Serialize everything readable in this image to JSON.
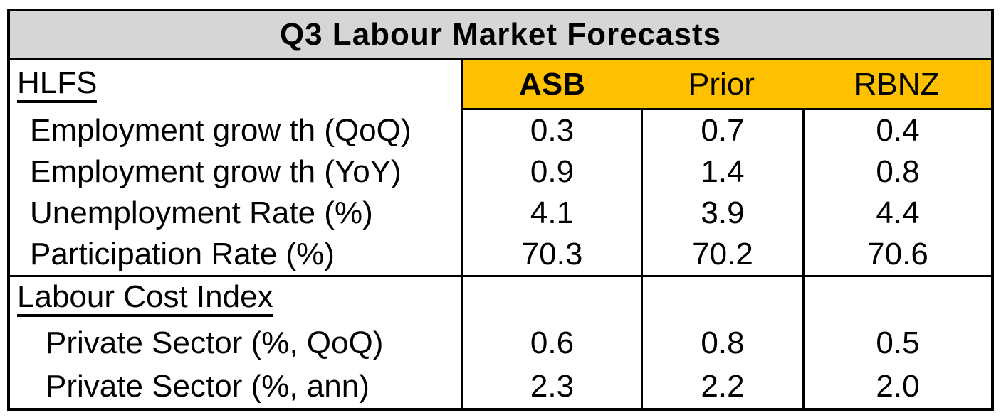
{
  "page_title": "Q3 Labour Market Forecasts",
  "chart_data": {
    "type": "table",
    "title": "Q3 Labour Market Forecasts",
    "column_headers": [
      "ASB",
      "Prior",
      "RBNZ"
    ],
    "sections": [
      {
        "heading": "HLFS",
        "rows": [
          {
            "label": "Employment grow th (QoQ)",
            "values": [
              "0.3",
              "0.7",
              "0.4"
            ]
          },
          {
            "label": "Employment grow th (YoY)",
            "values": [
              "0.9",
              "1.4",
              "0.8"
            ]
          },
          {
            "label": "Unemployment Rate (%)",
            "values": [
              "4.1",
              "3.9",
              "4.4"
            ]
          },
          {
            "label": "Participation Rate (%)",
            "values": [
              "70.3",
              "70.2",
              "70.6"
            ]
          }
        ]
      },
      {
        "heading": "Labour Cost Index",
        "rows": [
          {
            "label": "Private Sector (%, QoQ)",
            "values": [
              "0.6",
              "0.8",
              "0.5"
            ]
          },
          {
            "label": "Private Sector (%, ann)",
            "values": [
              "2.3",
              "2.2",
              "2.0"
            ]
          }
        ]
      }
    ],
    "layout": {
      "header_fill": "#FFC000",
      "title_fill": "#D6D6D6",
      "border_color": "#000000",
      "bold_column": "ASB",
      "section_headings_underlined": true,
      "labour_cost_index_heading_row_has_empty_value_cells": true
    }
  }
}
